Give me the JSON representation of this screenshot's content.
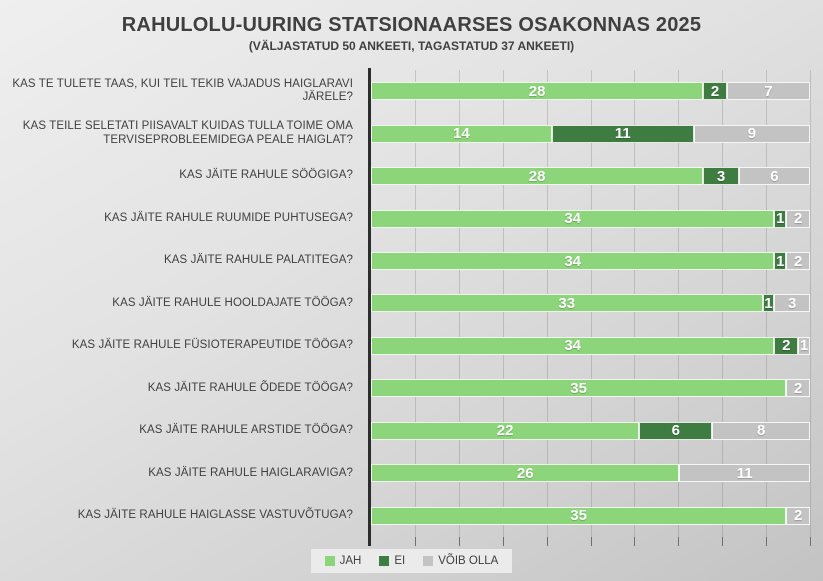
{
  "chart": {
    "title": "RAHULOLU-UURING STATSIONAARSES OSAKONNAS 2025",
    "subtitle": "(VÄLJASTATUD 50 ANKEETI, TAGASTATUD 37 ANKEETI)"
  },
  "chart_data": {
    "type": "bar",
    "variant": "horizontal-100pct-stacked",
    "title": "RAHULOLU-UURING STATSIONAARSES OSAKONNAS 2025",
    "subtitle": "(VÄLJASTATUD 50 ANKEETI, TAGASTATUD 37 ANKEETI)",
    "categories": [
      "KAS TE TULETE TAAS, KUI TEIL TEKIB VAJADUS HAIGLARAVI JÄRELE?",
      "KAS TEILE SELETATI PIISAVALT KUIDAS TULLA TOIME OMA TERVISEPROBLEEMIDEGA PEALE HAIGLAT?",
      "KAS JÄITE RAHULE SÖÖGIGA?",
      "KAS JÄITE RAHULE RUUMIDE PUHTUSEGA?",
      "KAS JÄITE RAHULE PALATITEGA?",
      "KAS JÄITE RAHULE HOOLDAJATE TÖÖGA?",
      "KAS JÄITE RAHULE FÜSIOTERAPEUTIDE TÖÖGA?",
      "KAS JÄITE RAHULE ÕDEDE TÖÖGA?",
      "KAS JÄITE RAHULE ARSTIDE TÖÖGA?",
      "KAS JÄITE RAHULE HAIGLARAVIGA?",
      "KAS JÄITE RAHULE HAIGLASSE VASTUVÕTUGA?"
    ],
    "series": [
      {
        "name": "JAH",
        "color": "#8CD57B",
        "values": [
          28,
          14,
          28,
          34,
          34,
          33,
          34,
          35,
          22,
          26,
          35
        ]
      },
      {
        "name": "EI",
        "color": "#3E7C41",
        "values": [
          2,
          11,
          3,
          1,
          1,
          1,
          2,
          0,
          6,
          0,
          0
        ]
      },
      {
        "name": "VÕIB OLLA",
        "color": "#C3C3C3",
        "values": [
          7,
          9,
          6,
          2,
          2,
          3,
          1,
          2,
          8,
          11,
          2
        ]
      }
    ],
    "value_labels": "white bold numbers on each segment",
    "legend": {
      "position": "bottom-center",
      "labels": [
        "JAH",
        "EI",
        "VÕIB OLLA"
      ]
    },
    "axes": {
      "category_axis": "left, dark vertical line",
      "value_axis_range_percent": [
        0,
        100
      ],
      "vertical_gridline_interval_percent": 10
    }
  }
}
